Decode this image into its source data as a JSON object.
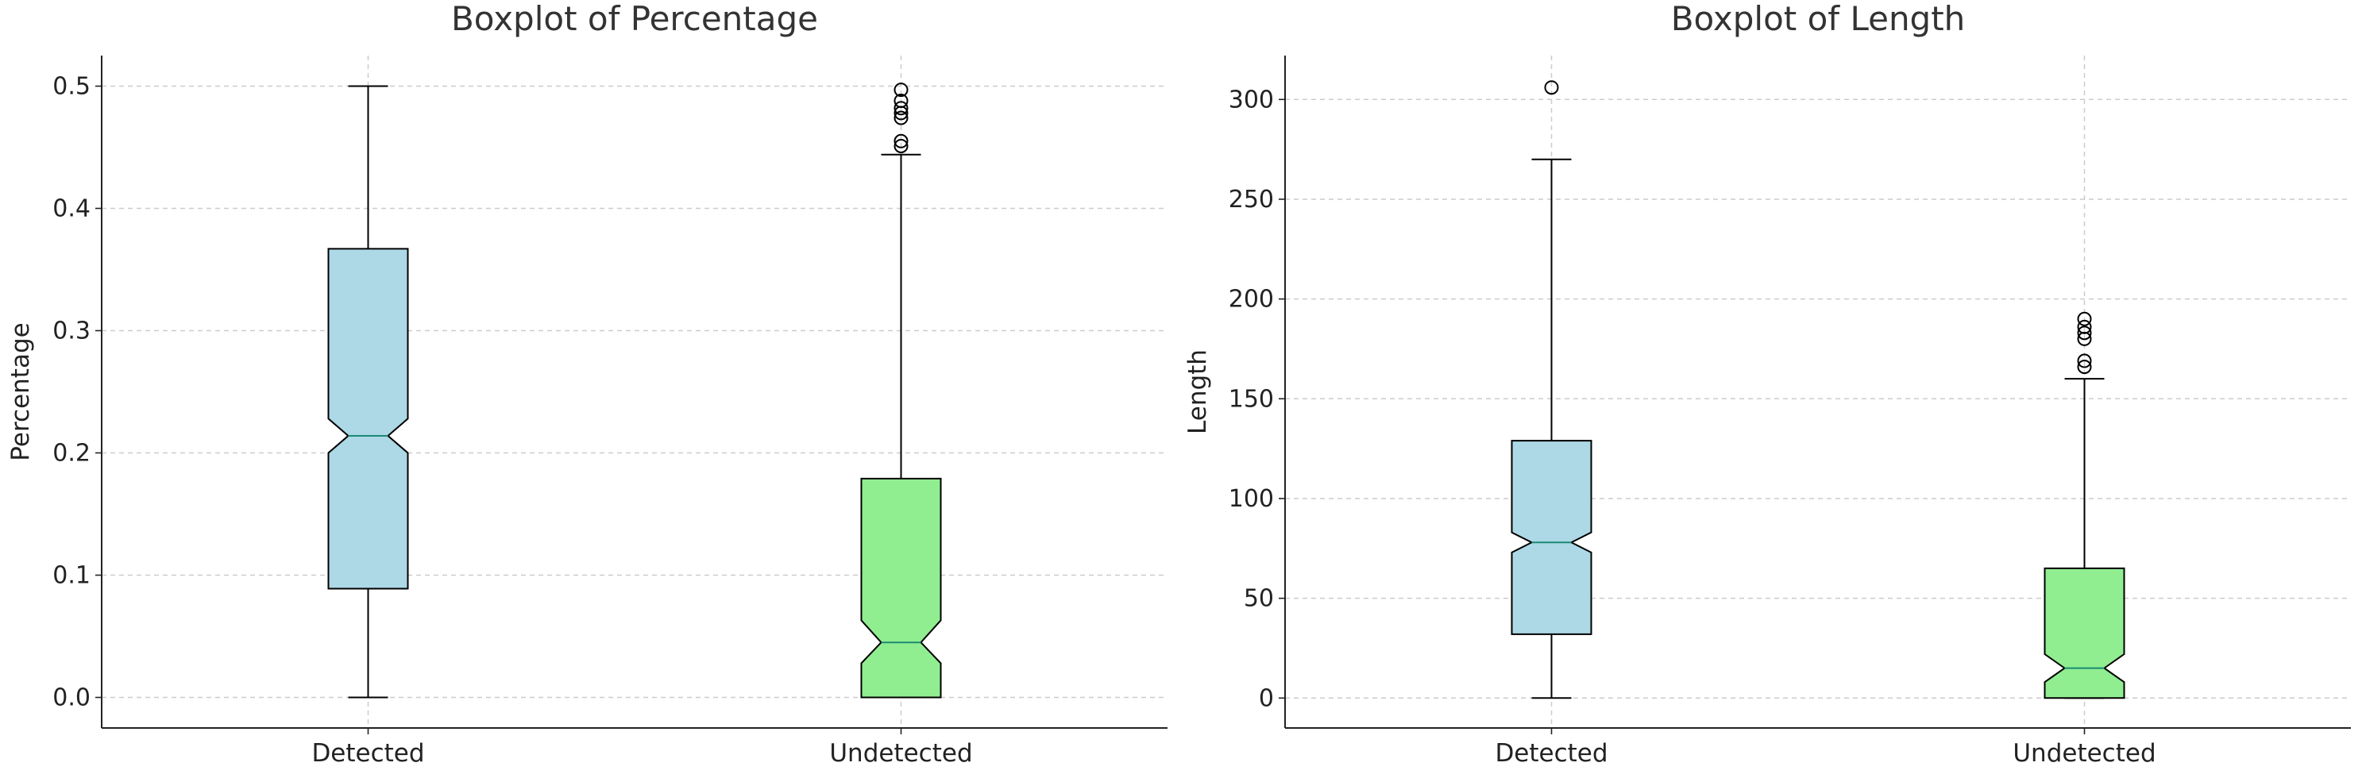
{
  "chart_data": [
    {
      "type": "boxplot",
      "title": "Boxplot of Percentage",
      "xlabel": "",
      "ylabel": "Percentage",
      "categories": [
        "Detected",
        "Undetected"
      ],
      "ylim": [
        -0.025,
        0.525
      ],
      "yticks": [
        0.0,
        0.1,
        0.2,
        0.3,
        0.4,
        0.5
      ],
      "ytick_labels": [
        "0.0",
        "0.1",
        "0.2",
        "0.3",
        "0.4",
        "0.5"
      ],
      "grid": true,
      "notched": true,
      "boxes": [
        {
          "category": "Detected",
          "color": "#add8e6",
          "whisker_low": 0.0,
          "q1": 0.089,
          "median": 0.214,
          "q3": 0.367,
          "whisker_high": 0.5,
          "notch_low": 0.2,
          "notch_high": 0.228,
          "outliers": []
        },
        {
          "category": "Undetected",
          "color": "#90ee90",
          "whisker_low": 0.0,
          "q1": 0.0,
          "median": 0.045,
          "q3": 0.179,
          "whisker_high": 0.444,
          "notch_low": 0.028,
          "notch_high": 0.063,
          "outliers": [
            0.451,
            0.455,
            0.474,
            0.478,
            0.482,
            0.488,
            0.497
          ]
        }
      ]
    },
    {
      "type": "boxplot",
      "title": "Boxplot of Length",
      "xlabel": "",
      "ylabel": "Length",
      "categories": [
        "Detected",
        "Undetected"
      ],
      "ylim": [
        -15,
        322
      ],
      "yticks": [
        0,
        50,
        100,
        150,
        200,
        250,
        300
      ],
      "ytick_labels": [
        "0",
        "50",
        "100",
        "150",
        "200",
        "250",
        "300"
      ],
      "grid": true,
      "notched": true,
      "boxes": [
        {
          "category": "Detected",
          "color": "#add8e6",
          "whisker_low": 0,
          "q1": 32,
          "median": 78,
          "q3": 129,
          "whisker_high": 270,
          "notch_low": 73,
          "notch_high": 83,
          "outliers": [
            306
          ]
        },
        {
          "category": "Undetected",
          "color": "#90ee90",
          "whisker_low": 0,
          "q1": 0,
          "median": 15,
          "q3": 65,
          "whisker_high": 160,
          "notch_low": 8,
          "notch_high": 22,
          "outliers": [
            166,
            169,
            180,
            183,
            186,
            190
          ]
        }
      ]
    }
  ]
}
